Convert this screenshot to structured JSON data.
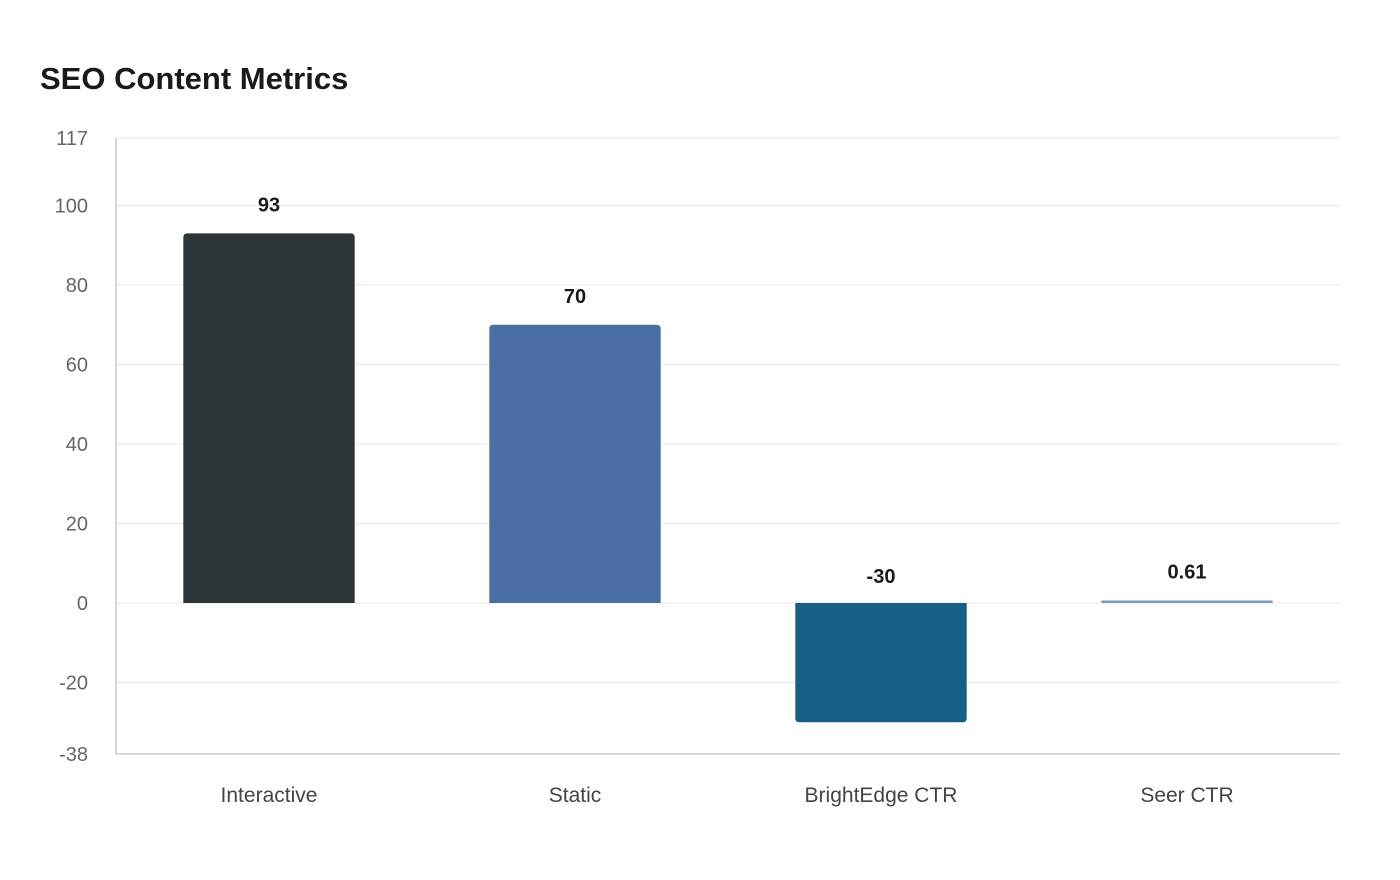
{
  "chart_data": {
    "type": "bar",
    "title": "SEO Content Metrics",
    "xlabel": "",
    "ylabel": "",
    "categories": [
      "Interactive",
      "Static",
      "BrightEdge CTR",
      "Seer CTR"
    ],
    "values": [
      93,
      70,
      -30,
      0.61
    ],
    "value_labels": [
      "93",
      "70",
      "-30",
      "0.61"
    ],
    "colors": [
      "#2d3538",
      "#4a6fa5",
      "#166088",
      "#7a9cb8"
    ],
    "ylim": [
      -38,
      117
    ],
    "yticks": [
      117,
      100,
      80,
      60,
      40,
      20,
      0,
      -20,
      -38
    ],
    "grid": true,
    "legend": "none"
  }
}
